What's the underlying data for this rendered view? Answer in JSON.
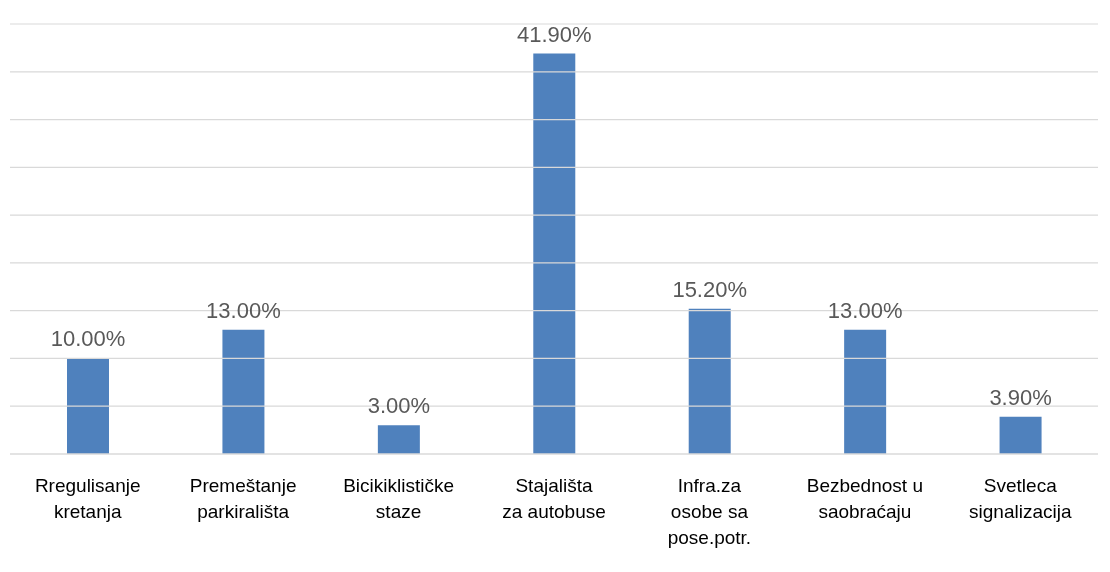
{
  "chart_data": {
    "type": "bar",
    "categories": [
      "Rregulisanje kretanja",
      "Premeštanje parkirališta",
      "Bicikiklističke staze",
      "Stajališta za autobuse",
      "Infra.za osobe sa pose.potr.",
      "Bezbednost u saobraćaju",
      "Svetleca signalizacija"
    ],
    "values": [
      10,
      13,
      3,
      41.9,
      15.2,
      13,
      3.9
    ],
    "value_labels": [
      "10.00%",
      "13.00%",
      "3.00%",
      "41.90%",
      "15.20%",
      "13.00%",
      "3.90%"
    ],
    "color": "#4f81bd",
    "ylim": [
      0,
      45
    ],
    "yticks": [
      {
        "value": 0,
        "label": null
      },
      {
        "value": 5,
        "label": null
      },
      {
        "value": 10,
        "label": null
      },
      {
        "value": 15,
        "label": null
      },
      {
        "value": 20,
        "label": null
      },
      {
        "value": 25,
        "label": null
      },
      {
        "value": 30,
        "label": null
      },
      {
        "value": 35,
        "label": null
      },
      {
        "value": 40,
        "label": null
      },
      {
        "value": 45,
        "label": null
      }
    ],
    "grid": "y",
    "tick_labels": "x"
  }
}
